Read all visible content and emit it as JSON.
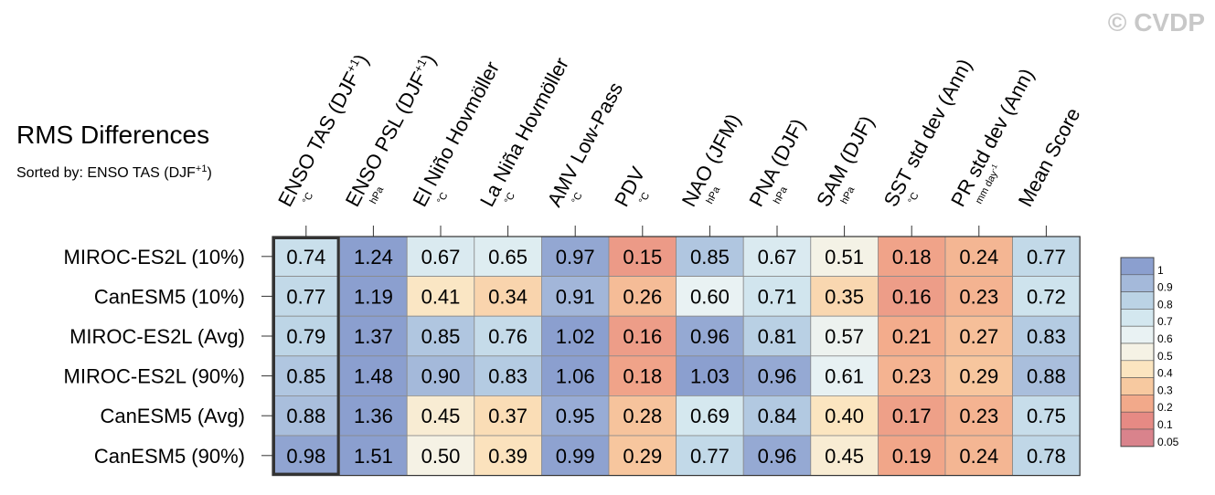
{
  "watermark": "© CVDP",
  "chart_data": {
    "type": "heatmap",
    "title": "RMS Differences",
    "subtitle": "Sorted by: ENSO TAS (DJF",
    "subtitle_superscript": "+1",
    "subtitle_close": ")",
    "columns": [
      {
        "label": "ENSO TAS (DJF",
        "sup": "+1",
        "close": ")",
        "unit": "°C"
      },
      {
        "label": "ENSO PSL (DJF",
        "sup": "+1",
        "close": ")",
        "unit": "hPa"
      },
      {
        "label": "El Niño Hovmöller",
        "unit": "°C"
      },
      {
        "label": "La Niña Hovmöller",
        "unit": "°C"
      },
      {
        "label": "AMV Low-Pass",
        "unit": "°C"
      },
      {
        "label": "PDV",
        "unit": "°C"
      },
      {
        "label": "NAO (JFM)",
        "unit": "hPa"
      },
      {
        "label": "PNA (DJF)",
        "unit": "hPa"
      },
      {
        "label": "SAM (DJF)",
        "unit": "hPa"
      },
      {
        "label": "SST std dev (Ann)",
        "unit": "°C"
      },
      {
        "label": "PR std dev (Ann)",
        "unit": "mm day",
        "unit_sup": "-1"
      },
      {
        "label": "Mean Score",
        "unit": ""
      }
    ],
    "rows": [
      "MIROC-ES2L (10%)",
      "CanESM5 (10%)",
      "MIROC-ES2L (Avg)",
      "MIROC-ES2L (90%)",
      "CanESM5 (Avg)",
      "CanESM5 (90%)"
    ],
    "values": [
      [
        "0.74",
        "1.24",
        "0.67",
        "0.65",
        "0.97",
        "0.15",
        "0.85",
        "0.67",
        "0.51",
        "0.18",
        "0.24",
        "0.77"
      ],
      [
        "0.77",
        "1.19",
        "0.41",
        "0.34",
        "0.91",
        "0.26",
        "0.60",
        "0.71",
        "0.35",
        "0.16",
        "0.23",
        "0.72"
      ],
      [
        "0.79",
        "1.37",
        "0.85",
        "0.76",
        "1.02",
        "0.16",
        "0.96",
        "0.81",
        "0.57",
        "0.21",
        "0.27",
        "0.83"
      ],
      [
        "0.85",
        "1.48",
        "0.90",
        "0.83",
        "1.06",
        "0.18",
        "1.03",
        "0.96",
        "0.61",
        "0.23",
        "0.29",
        "0.88"
      ],
      [
        "0.88",
        "1.36",
        "0.45",
        "0.37",
        "0.95",
        "0.28",
        "0.69",
        "0.84",
        "0.40",
        "0.17",
        "0.23",
        "0.75"
      ],
      [
        "0.98",
        "1.51",
        "0.50",
        "0.39",
        "0.99",
        "0.29",
        "0.77",
        "0.96",
        "0.45",
        "0.19",
        "0.24",
        "0.78"
      ]
    ],
    "highlighted_column": "ENSO TAS (DJF+1)",
    "colorbar": {
      "ticks": [
        "1",
        "0.9",
        "0.8",
        "0.7",
        "0.6",
        "0.5",
        "0.4",
        "0.3",
        "0.2",
        "0.1",
        "0.05"
      ],
      "colors": [
        "#8b9fcf",
        "#a4b9da",
        "#bbd3e5",
        "#d3e7ef",
        "#e9f2f3",
        "#f5f2e5",
        "#fbe5c0",
        "#f7c9a0",
        "#f2a98a",
        "#e68a84",
        "#d9838c"
      ]
    }
  }
}
